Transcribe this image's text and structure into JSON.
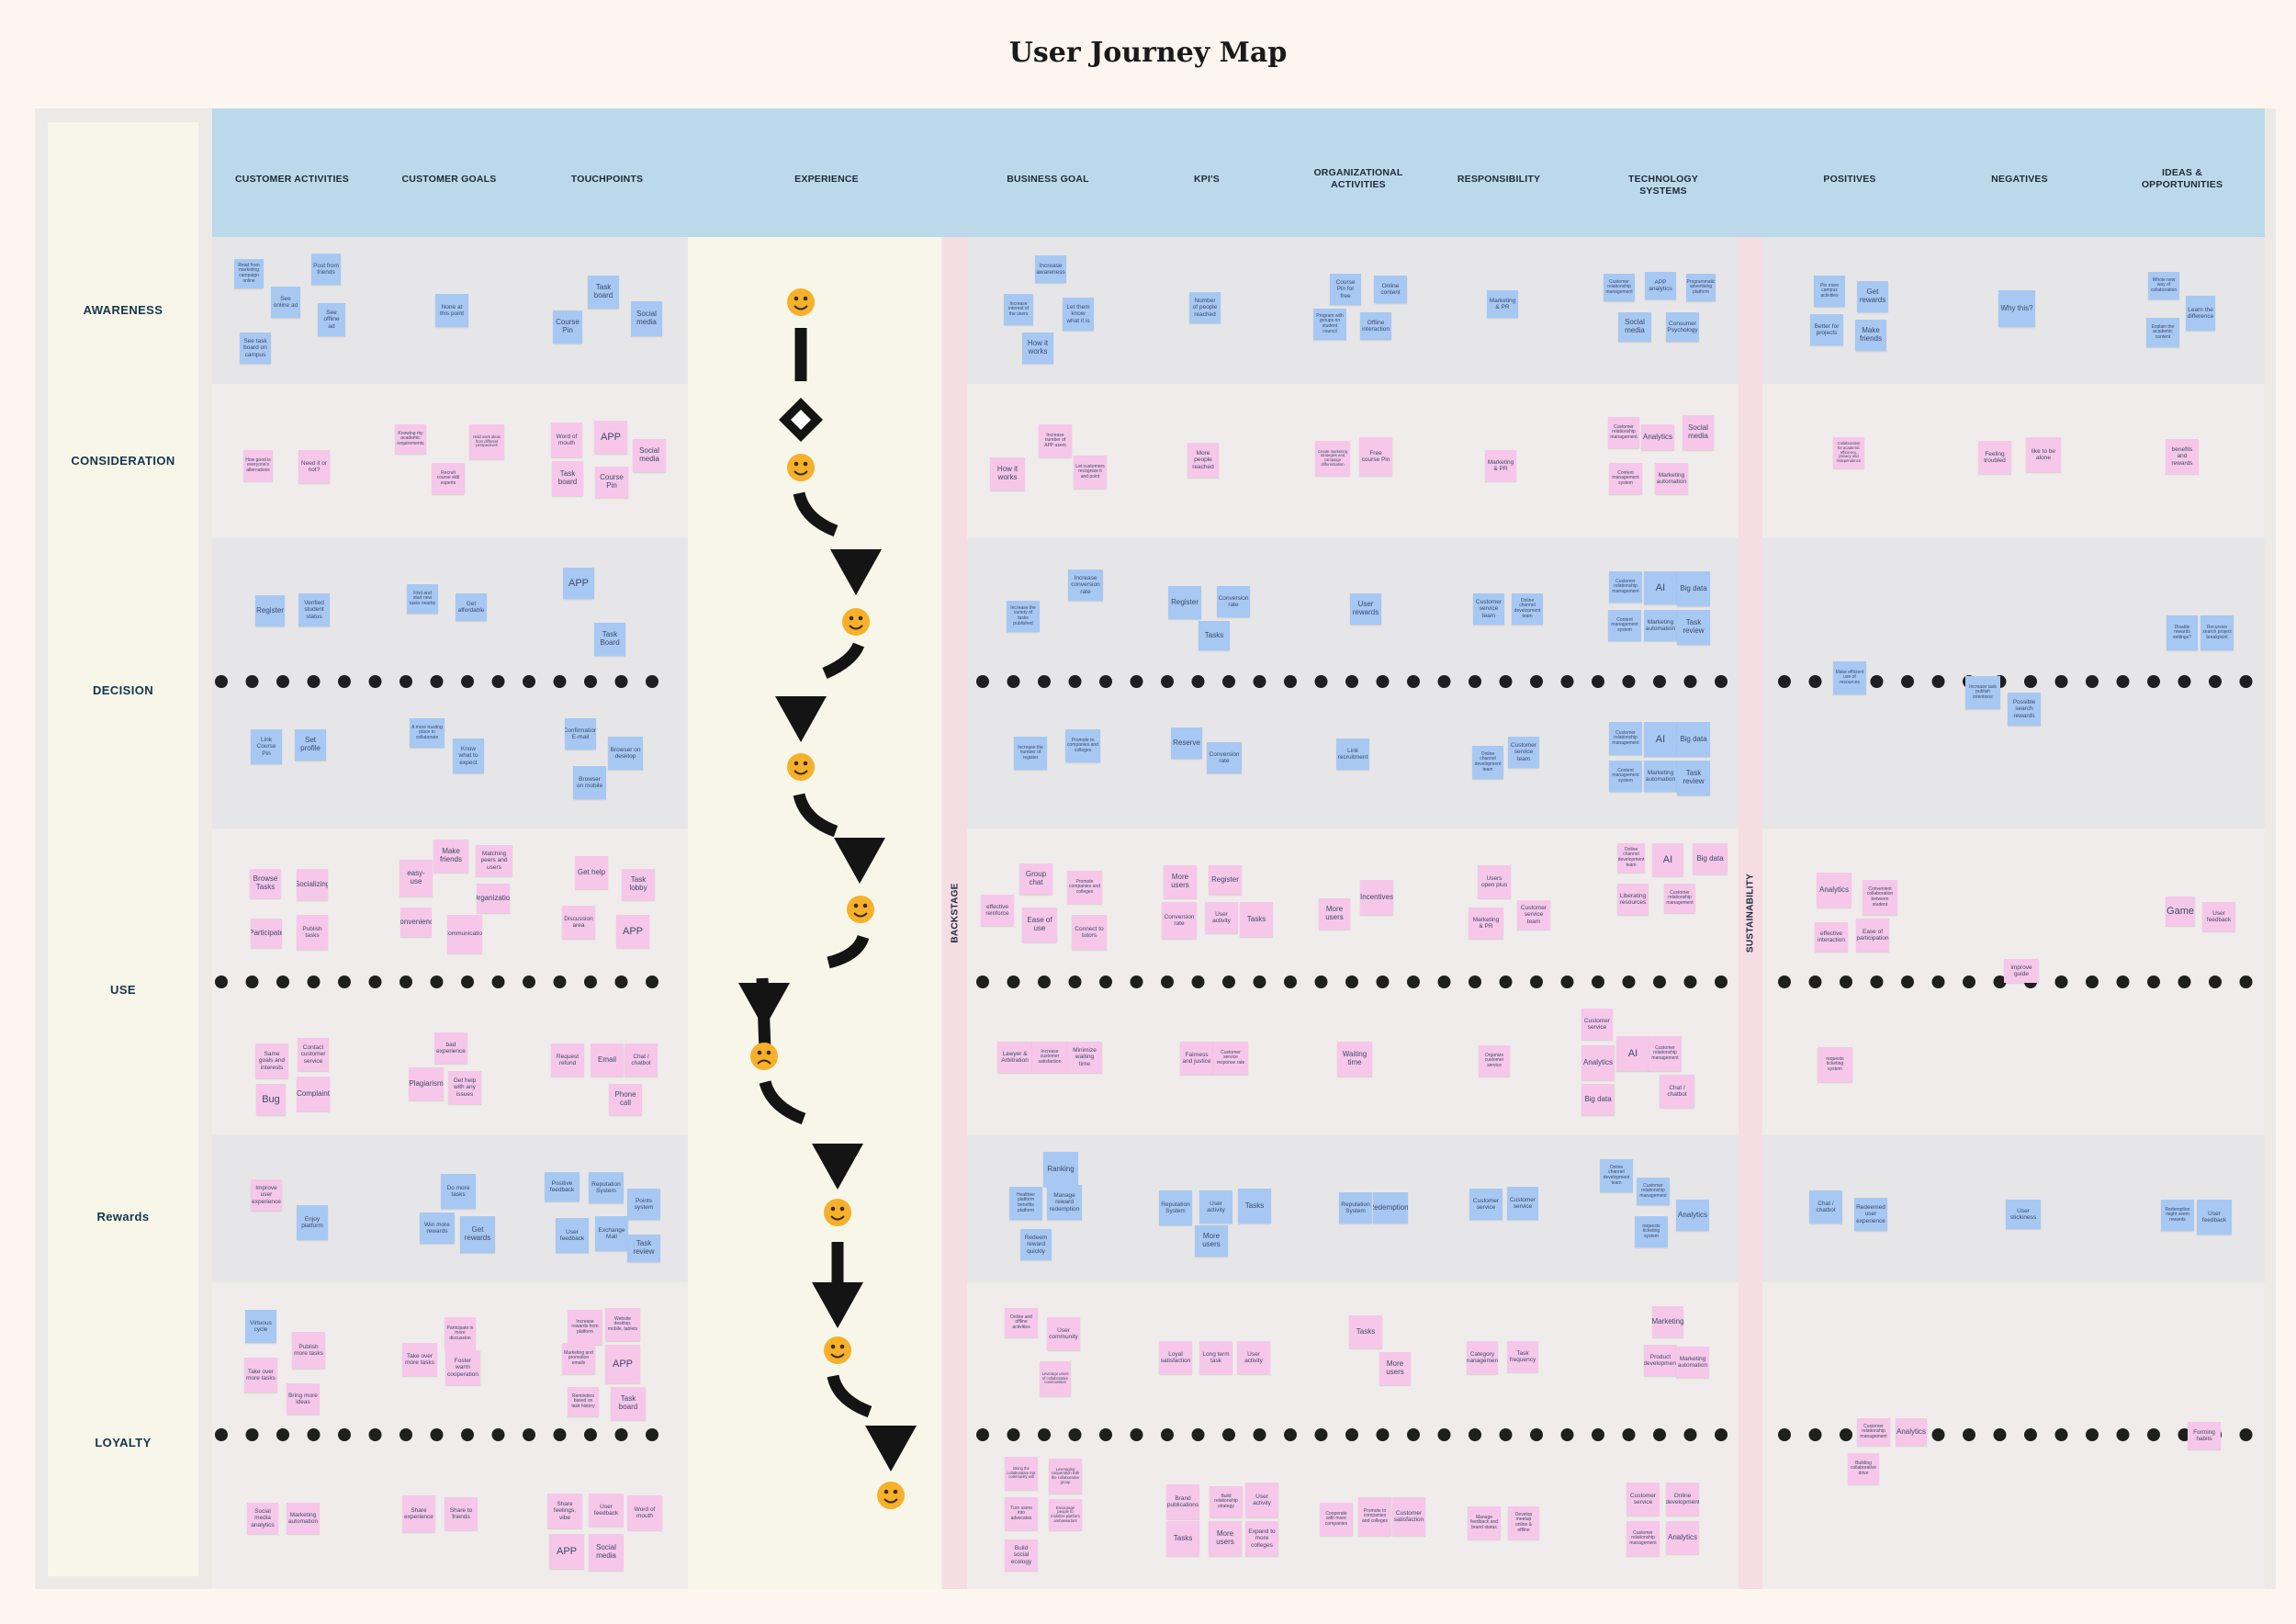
{
  "title": "User Journey Map",
  "columns": [
    {
      "id": "cust-activities",
      "label": "CUSTOMER ACTIVITIES"
    },
    {
      "id": "cust-goals",
      "label": "CUSTOMER GOALS"
    },
    {
      "id": "touchpoints",
      "label": "TOUCHPOINTS"
    },
    {
      "id": "experience",
      "label": "EXPERIENCE"
    },
    {
      "id": "business-goal",
      "label": "BUSINESS GOAL"
    },
    {
      "id": "kpis",
      "label": "KPI'S"
    },
    {
      "id": "org-activities",
      "label": "ORGANIZATIONAL ACTIVITIES"
    },
    {
      "id": "responsibility",
      "label": "RESPONSIBILITY"
    },
    {
      "id": "tech-systems",
      "label": "TECHNOLOGY SYSTEMS"
    },
    {
      "id": "positives",
      "label": "POSITIVES"
    },
    {
      "id": "negatives",
      "label": "NEGATIVES"
    },
    {
      "id": "ideas",
      "label": "IDEAS & OPPORTUNITIES"
    }
  ],
  "stages": [
    "AWARENESS",
    "CONSIDERATION",
    "DECISION",
    "USE",
    "Rewards",
    "LOYALTY"
  ],
  "separators": {
    "backstage": "BACKSTAGE",
    "sustainability": "SUSTAINABILITY"
  },
  "experience_moods": [
    "happy",
    "happy",
    "happy",
    "happy",
    "happy",
    "sad",
    "happy",
    "happy",
    "happy"
  ],
  "notes": [
    {
      "t": "Read from marketing campaign online",
      "c": "blue"
    },
    {
      "t": "Post from friends",
      "c": "blue"
    },
    {
      "t": "See online ad",
      "c": "blue"
    },
    {
      "t": "See offline ad",
      "c": "blue"
    },
    {
      "t": "See task board on campus",
      "c": "blue"
    },
    {
      "t": "None at this point",
      "c": "blue"
    },
    {
      "t": "Task board",
      "c": "blue"
    },
    {
      "t": "Course Pin",
      "c": "blue"
    },
    {
      "t": "Social media",
      "c": "blue"
    },
    {
      "t": "Increase awareness",
      "c": "blue"
    },
    {
      "t": "Increase interest of the users",
      "c": "blue"
    },
    {
      "t": "Let them know what it is",
      "c": "blue"
    },
    {
      "t": "How it works",
      "c": "blue"
    },
    {
      "t": "Number of people reached",
      "c": "blue"
    },
    {
      "t": "Course Pin for free",
      "c": "blue"
    },
    {
      "t": "Online content",
      "c": "blue"
    },
    {
      "t": "Program with groups on student council",
      "c": "blue"
    },
    {
      "t": "Offline interaction",
      "c": "blue"
    },
    {
      "t": "Marketing & PR",
      "c": "blue"
    },
    {
      "t": "Customer relationship management",
      "c": "blue"
    },
    {
      "t": "APP analytics",
      "c": "blue"
    },
    {
      "t": "Programmatic advertising platform",
      "c": "blue"
    },
    {
      "t": "Social media",
      "c": "blue"
    },
    {
      "t": "Consumer Psychology",
      "c": "blue"
    },
    {
      "t": "Pin more campus activities",
      "c": "blue"
    },
    {
      "t": "Get rewards",
      "c": "blue"
    },
    {
      "t": "Better for projects",
      "c": "blue"
    },
    {
      "t": "Make friends",
      "c": "blue"
    },
    {
      "t": "Why this?",
      "c": "blue"
    },
    {
      "t": "Whole new way of collaboration",
      "c": "blue"
    },
    {
      "t": "Learn the difference",
      "c": "blue"
    },
    {
      "t": "Explain the academic content",
      "c": "blue"
    },
    {
      "t": "How good is everyone's alternatives",
      "c": "pink"
    },
    {
      "t": "Need it or not?",
      "c": "pink"
    },
    {
      "t": "Knowing my academic requirements",
      "c": "pink"
    },
    {
      "t": "Hold work ideas from different perspectives",
      "c": "pink"
    },
    {
      "t": "Recruit course skill experts",
      "c": "pink"
    },
    {
      "t": "Word of mouth",
      "c": "pink"
    },
    {
      "t": "APP",
      "c": "pink"
    },
    {
      "t": "Social media",
      "c": "pink"
    },
    {
      "t": "Task board",
      "c": "pink"
    },
    {
      "t": "Course Pin",
      "c": "pink"
    },
    {
      "t": "How it works",
      "c": "pink"
    },
    {
      "t": "Increase number of APP users",
      "c": "pink"
    },
    {
      "t": "Let customers recognize it and point",
      "c": "pink"
    },
    {
      "t": "More people reached",
      "c": "pink"
    },
    {
      "t": "Create marketing strategies and campaign differentiation",
      "c": "pink"
    },
    {
      "t": "Free course Pin",
      "c": "pink"
    },
    {
      "t": "Marketing & PR",
      "c": "pink"
    },
    {
      "t": "Customer relationship management",
      "c": "pink"
    },
    {
      "t": "Analytics",
      "c": "pink"
    },
    {
      "t": "Social media",
      "c": "pink"
    },
    {
      "t": "Content management system",
      "c": "pink"
    },
    {
      "t": "Marketing automation",
      "c": "pink"
    },
    {
      "t": "Collaboration for academic efficiency, privacy and independence",
      "c": "pink"
    },
    {
      "t": "Feeling troubled",
      "c": "pink"
    },
    {
      "t": "like to be alone",
      "c": "pink"
    },
    {
      "t": "benefits and rewards",
      "c": "pink"
    },
    {
      "t": "Register",
      "c": "blue"
    },
    {
      "t": "Verified student status",
      "c": "blue"
    },
    {
      "t": "Find and start new tasks nearby",
      "c": "blue"
    },
    {
      "t": "Get affordable",
      "c": "blue"
    },
    {
      "t": "APP",
      "c": "blue"
    },
    {
      "t": "Task Board",
      "c": "blue"
    },
    {
      "t": "Increase the variety of tasks published",
      "c": "blue"
    },
    {
      "t": "Increase conversion rate",
      "c": "blue"
    },
    {
      "t": "Register",
      "c": "blue"
    },
    {
      "t": "Conversion rate",
      "c": "blue"
    },
    {
      "t": "Tasks",
      "c": "blue"
    },
    {
      "t": "User rewards",
      "c": "blue"
    },
    {
      "t": "Customer service team",
      "c": "blue"
    },
    {
      "t": "Online channel development team",
      "c": "blue"
    },
    {
      "t": "Customer relationship management",
      "c": "blue"
    },
    {
      "t": "AI",
      "c": "blue"
    },
    {
      "t": "Big data",
      "c": "blue"
    },
    {
      "t": "Content management system",
      "c": "blue"
    },
    {
      "t": "Marketing automation",
      "c": "blue"
    },
    {
      "t": "Task review",
      "c": "blue"
    },
    {
      "t": "Disable rewards settings?",
      "c": "blue"
    },
    {
      "t": "Recursive search project breakpoint",
      "c": "blue"
    },
    {
      "t": "Link Course Pin",
      "c": "blue"
    },
    {
      "t": "Set profile",
      "c": "blue"
    },
    {
      "t": "A more trusting place to collaborate",
      "c": "blue"
    },
    {
      "t": "Know what to expect",
      "c": "blue"
    },
    {
      "t": "Confirmation E-mail",
      "c": "blue"
    },
    {
      "t": "Browser on desktop",
      "c": "blue"
    },
    {
      "t": "Browser on mobile",
      "c": "blue"
    },
    {
      "t": "Increase the number of register",
      "c": "blue"
    },
    {
      "t": "Promote to companies and colleges",
      "c": "blue"
    },
    {
      "t": "Reserve",
      "c": "blue"
    },
    {
      "t": "Conversion rate",
      "c": "blue"
    },
    {
      "t": "Link recruitment",
      "c": "blue"
    },
    {
      "t": "Online channel development team",
      "c": "blue"
    },
    {
      "t": "Customer service team",
      "c": "blue"
    },
    {
      "t": "Customer relationship management",
      "c": "blue"
    },
    {
      "t": "AI",
      "c": "blue"
    },
    {
      "t": "Big data",
      "c": "blue"
    },
    {
      "t": "Content management system",
      "c": "blue"
    },
    {
      "t": "Marketing automation",
      "c": "blue"
    },
    {
      "t": "Task review",
      "c": "blue"
    },
    {
      "t": "Make efficient use of resources",
      "c": "blue"
    },
    {
      "t": "Increase task publish intentions",
      "c": "blue"
    },
    {
      "t": "Possible search rewards",
      "c": "blue"
    },
    {
      "t": "Browse Tasks",
      "c": "pink"
    },
    {
      "t": "Socializing",
      "c": "pink"
    },
    {
      "t": "Participate",
      "c": "pink"
    },
    {
      "t": "Publish tasks",
      "c": "pink"
    },
    {
      "t": "easy-use",
      "c": "pink"
    },
    {
      "t": "Make friends",
      "c": "pink"
    },
    {
      "t": "Matching peers and users",
      "c": "pink"
    },
    {
      "t": "Convenience",
      "c": "pink"
    },
    {
      "t": "Organization",
      "c": "pink"
    },
    {
      "t": "Communication",
      "c": "pink"
    },
    {
      "t": "Get help",
      "c": "pink"
    },
    {
      "t": "Task lobby",
      "c": "pink"
    },
    {
      "t": "Discussion area",
      "c": "pink"
    },
    {
      "t": "APP",
      "c": "pink"
    },
    {
      "t": "Group chat",
      "c": "pink"
    },
    {
      "t": "effective reinforce",
      "c": "pink"
    },
    {
      "t": "Promote companies and colleges",
      "c": "pink"
    },
    {
      "t": "Ease of use",
      "c": "pink"
    },
    {
      "t": "Connect to tutors",
      "c": "pink"
    },
    {
      "t": "More users",
      "c": "pink"
    },
    {
      "t": "Register",
      "c": "pink"
    },
    {
      "t": "Conversion rate",
      "c": "pink"
    },
    {
      "t": "User activity",
      "c": "pink"
    },
    {
      "t": "Tasks",
      "c": "pink"
    },
    {
      "t": "More users",
      "c": "pink"
    },
    {
      "t": "Incentives",
      "c": "pink"
    },
    {
      "t": "Users open plus",
      "c": "pink"
    },
    {
      "t": "Marketing & PR",
      "c": "pink"
    },
    {
      "t": "Customer service team",
      "c": "pink"
    },
    {
      "t": "Online channel development team",
      "c": "pink"
    },
    {
      "t": "AI",
      "c": "pink"
    },
    {
      "t": "Big data",
      "c": "pink"
    },
    {
      "t": "Liberating resources",
      "c": "pink"
    },
    {
      "t": "Customer relationship management",
      "c": "pink"
    },
    {
      "t": "Analytics",
      "c": "pink"
    },
    {
      "t": "Convenient collaboration between student",
      "c": "pink"
    },
    {
      "t": "effective interaction",
      "c": "pink"
    },
    {
      "t": "Ease of participation",
      "c": "pink"
    },
    {
      "t": "Game",
      "c": "pink"
    },
    {
      "t": "User feedback",
      "c": "pink"
    },
    {
      "t": "improve guide",
      "c": "pink"
    },
    {
      "t": "Same goals and interests",
      "c": "pink"
    },
    {
      "t": "Contact customer service",
      "c": "pink"
    },
    {
      "t": "Bug",
      "c": "pink"
    },
    {
      "t": "Complaint",
      "c": "pink"
    },
    {
      "t": "bad experience",
      "c": "pink"
    },
    {
      "t": "Plagiarism",
      "c": "pink"
    },
    {
      "t": "Get help with any issues",
      "c": "pink"
    },
    {
      "t": "Request refund",
      "c": "pink"
    },
    {
      "t": "Email",
      "c": "pink"
    },
    {
      "t": "Chat / chatbot",
      "c": "pink"
    },
    {
      "t": "Phone call",
      "c": "pink"
    },
    {
      "t": "Lawyer & Arbitration",
      "c": "pink"
    },
    {
      "t": "Increase customer satisfaction",
      "c": "pink"
    },
    {
      "t": "Minimize waiting time",
      "c": "pink"
    },
    {
      "t": "Fairness and justice",
      "c": "pink"
    },
    {
      "t": "Customer service response rate",
      "c": "pink"
    },
    {
      "t": "Waiting time",
      "c": "pink"
    },
    {
      "t": "Organize customer service",
      "c": "pink"
    },
    {
      "t": "Customer service",
      "c": "pink"
    },
    {
      "t": "Analytics",
      "c": "pink"
    },
    {
      "t": "AI",
      "c": "pink"
    },
    {
      "t": "Customer relationship management",
      "c": "pink"
    },
    {
      "t": "Big data",
      "c": "pink"
    },
    {
      "t": "Chat / chatbot",
      "c": "pink"
    },
    {
      "t": "requests ticketing system",
      "c": "pink"
    },
    {
      "t": "Improve user experience",
      "c": "pink"
    },
    {
      "t": "Enjoy platform",
      "c": "blue"
    },
    {
      "t": "Do more tasks",
      "c": "blue"
    },
    {
      "t": "Win more rewards",
      "c": "blue"
    },
    {
      "t": "Get rewards",
      "c": "blue"
    },
    {
      "t": "Positive feedback",
      "c": "blue"
    },
    {
      "t": "Reputation System",
      "c": "blue"
    },
    {
      "t": "Points system",
      "c": "blue"
    },
    {
      "t": "User feedback",
      "c": "blue"
    },
    {
      "t": "Exchange Mall",
      "c": "blue"
    },
    {
      "t": "Task review",
      "c": "blue"
    },
    {
      "t": "Ranking",
      "c": "blue"
    },
    {
      "t": "Healthier platform benefits platform",
      "c": "blue"
    },
    {
      "t": "Manage reward redemption",
      "c": "blue"
    },
    {
      "t": "Redeem reward quickly",
      "c": "blue"
    },
    {
      "t": "Reputation System",
      "c": "blue"
    },
    {
      "t": "User activity",
      "c": "blue"
    },
    {
      "t": "Tasks",
      "c": "blue"
    },
    {
      "t": "More users",
      "c": "blue"
    },
    {
      "t": "Reputation System",
      "c": "blue"
    },
    {
      "t": "Redemptions",
      "c": "blue"
    },
    {
      "t": "Customer service",
      "c": "blue"
    },
    {
      "t": "Customer service",
      "c": "blue"
    },
    {
      "t": "Online channel development team",
      "c": "blue"
    },
    {
      "t": "Customer relationship management",
      "c": "blue"
    },
    {
      "t": "Analytics",
      "c": "blue"
    },
    {
      "t": "requests ticketing system",
      "c": "blue"
    },
    {
      "t": "Chat / chatbot",
      "c": "blue"
    },
    {
      "t": "Redeemed user experience",
      "c": "blue"
    },
    {
      "t": "User stickiness",
      "c": "blue"
    },
    {
      "t": "Redemption might seem rewards",
      "c": "blue"
    },
    {
      "t": "User feedback",
      "c": "blue"
    },
    {
      "t": "Virtuous cycle",
      "c": "blue"
    },
    {
      "t": "Publish more tasks",
      "c": "pink"
    },
    {
      "t": "Take over more tasks",
      "c": "pink"
    },
    {
      "t": "Bring more ideas",
      "c": "pink"
    },
    {
      "t": "Participate in more discussion",
      "c": "pink"
    },
    {
      "t": "Take over more tasks",
      "c": "pink"
    },
    {
      "t": "Foster warm cooperation",
      "c": "pink"
    },
    {
      "t": "Increase rewards from platform",
      "c": "pink"
    },
    {
      "t": "Website desktop, mobile, tablets",
      "c": "pink"
    },
    {
      "t": "Marketing and promotion emails",
      "c": "pink"
    },
    {
      "t": "APP",
      "c": "pink"
    },
    {
      "t": "Reminders based on task history",
      "c": "pink"
    },
    {
      "t": "Task board",
      "c": "pink"
    },
    {
      "t": "Online and offline activities",
      "c": "pink"
    },
    {
      "t": "User community",
      "c": "pink"
    },
    {
      "t": "Leverage users of collaborative communities",
      "c": "pink"
    },
    {
      "t": "Loyal satisfaction",
      "c": "pink"
    },
    {
      "t": "Long term task",
      "c": "pink"
    },
    {
      "t": "User activity",
      "c": "pink"
    },
    {
      "t": "Tasks",
      "c": "pink"
    },
    {
      "t": "More users",
      "c": "pink"
    },
    {
      "t": "Category management",
      "c": "pink"
    },
    {
      "t": "Task frequency",
      "c": "pink"
    },
    {
      "t": "Marketing",
      "c": "pink"
    },
    {
      "t": "Product development",
      "c": "pink"
    },
    {
      "t": "Marketing automation",
      "c": "pink"
    },
    {
      "t": "Customer relationship management",
      "c": "pink"
    },
    {
      "t": "Analytics",
      "c": "pink"
    },
    {
      "t": "Building collaborative drive",
      "c": "pink"
    },
    {
      "t": "Forming habits",
      "c": "pink"
    },
    {
      "t": "Being the collaborative mix community will",
      "c": "pink"
    },
    {
      "t": "Leveraging cooperation with the collaborative group",
      "c": "pink"
    },
    {
      "t": "Turn users into advocates",
      "c": "pink"
    },
    {
      "t": "Encourage people to mobilize platform ambassadors",
      "c": "pink"
    },
    {
      "t": "Build social ecology",
      "c": "pink"
    },
    {
      "t": "Brand publications",
      "c": "pink"
    },
    {
      "t": "Build relationship strategy",
      "c": "pink"
    },
    {
      "t": "User activity",
      "c": "pink"
    },
    {
      "t": "Tasks",
      "c": "pink"
    },
    {
      "t": "More users",
      "c": "pink"
    },
    {
      "t": "Expand to more colleges",
      "c": "pink"
    },
    {
      "t": "Cooperate with more companies",
      "c": "pink"
    },
    {
      "t": "Promote to companies and colleges",
      "c": "pink"
    },
    {
      "t": "Customer satisfaction",
      "c": "pink"
    },
    {
      "t": "Manage feedback and brand status",
      "c": "pink"
    },
    {
      "t": "Develop meetup online & offline",
      "c": "pink"
    },
    {
      "t": "Customer service",
      "c": "pink"
    },
    {
      "t": "Online development",
      "c": "pink"
    },
    {
      "t": "Customer relationship management",
      "c": "pink"
    },
    {
      "t": "Analytics",
      "c": "pink"
    },
    {
      "t": "Social media analytics",
      "c": "pink"
    },
    {
      "t": "Marketing automation",
      "c": "pink"
    },
    {
      "t": "Share experience",
      "c": "pink"
    },
    {
      "t": "Share to friends",
      "c": "pink"
    },
    {
      "t": "Share feelings, vibe",
      "c": "pink"
    },
    {
      "t": "User feedback",
      "c": "pink"
    },
    {
      "t": "Word of mouth",
      "c": "pink"
    },
    {
      "t": "APP",
      "c": "pink"
    },
    {
      "t": "Social media",
      "c": "pink"
    },
    {
      "t": "Website desktop mobile tablet",
      "c": "pink"
    },
    {
      "t": "Task board",
      "c": "pink"
    }
  ]
}
